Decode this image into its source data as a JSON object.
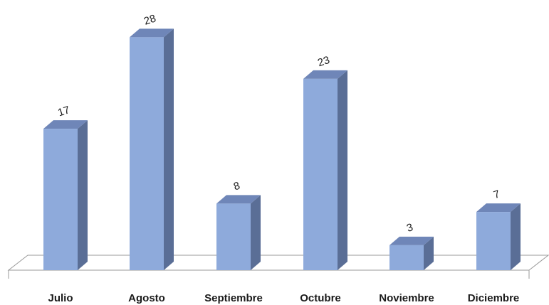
{
  "chart_data": {
    "type": "bar",
    "title": "",
    "xlabel": "",
    "ylabel": "",
    "categories": [
      "Julio",
      "Agosto",
      "Septiembre",
      "Octubre",
      "Noviembre",
      "Diciembre"
    ],
    "values": [
      17,
      28,
      8,
      23,
      3,
      7
    ],
    "data_labels": [
      "17",
      "28",
      "8",
      "23",
      "3",
      "7"
    ],
    "ylim": [
      0,
      28
    ],
    "grid": false,
    "legend": "none",
    "style": "3d-column",
    "colors": {
      "bar_front": "#8EAADB",
      "bar_side": "#5A6E96",
      "bar_top": "#6F86B8",
      "floor": "#ffffff",
      "floor_edge": "#9a9a9a"
    }
  }
}
